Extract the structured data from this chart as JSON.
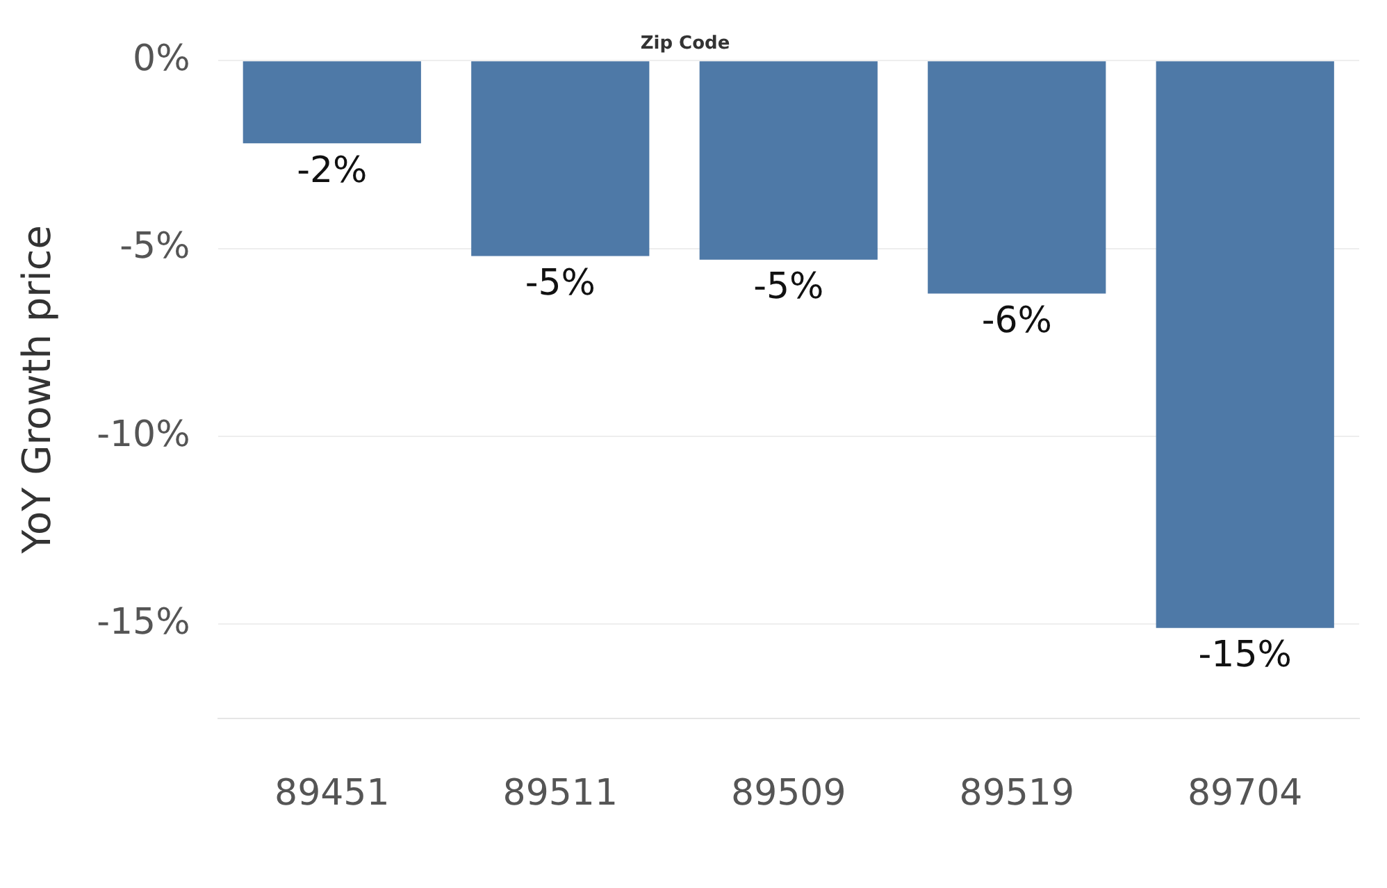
{
  "chart_data": {
    "type": "bar",
    "xlabel": "Zip Code",
    "ylabel": "YoY Growth price",
    "categories": [
      "89451",
      "89511",
      "89509",
      "89519",
      "89704"
    ],
    "values": [
      -2.2,
      -5.2,
      -5.3,
      -6.2,
      -15.1
    ],
    "value_labels": [
      "-2%",
      "-5%",
      "-5%",
      "-6%",
      "-15%"
    ],
    "color": "#4e79a7",
    "ylim": [
      -17.5,
      0
    ],
    "yticks": [
      {
        "value": 0,
        "label": "0%"
      },
      {
        "value": -5,
        "label": "-5%"
      },
      {
        "value": -10,
        "label": "-10%"
      },
      {
        "value": -15,
        "label": "-15%"
      }
    ],
    "grid": "y"
  }
}
